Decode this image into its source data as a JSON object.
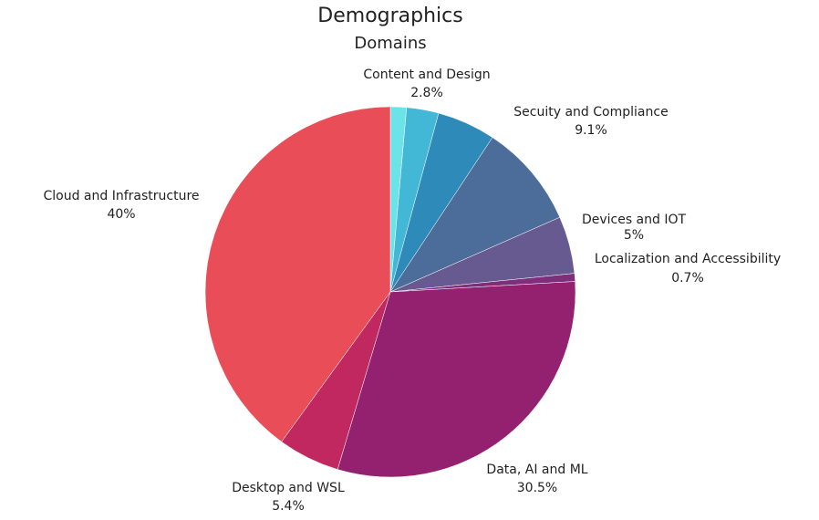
{
  "chart_data": {
    "type": "pie",
    "title": "Demographics",
    "subtitle": "Domains",
    "start_angle": "top, clockwise",
    "slices": [
      {
        "name": "",
        "value": 1.4,
        "color": "#6BE3E8",
        "label": ""
      },
      {
        "name": "Content and Design",
        "value": 2.8,
        "color": "#42B7D6",
        "label": "2.8%"
      },
      {
        "name": "",
        "value": 5.1,
        "color": "#2E8AB8",
        "label": ""
      },
      {
        "name": "Secuity and Compliance",
        "value": 9.1,
        "color": "#4C6C9A",
        "label": "9.1%"
      },
      {
        "name": "Devices and IOT",
        "value": 5,
        "color": "#675A90",
        "label": "5%"
      },
      {
        "name": "Localization and Accessibility",
        "value": 0.7,
        "color": "#7E2F7C",
        "label": "0.7%"
      },
      {
        "name": "Data, AI and ML",
        "value": 30.5,
        "color": "#93216F",
        "label": "30.5%"
      },
      {
        "name": "Desktop and WSL",
        "value": 5.4,
        "color": "#C0285F",
        "label": "5.4%"
      },
      {
        "name": "Cloud and Infrastructure",
        "value": 40,
        "color": "#E94E58",
        "label": "40%"
      }
    ]
  }
}
